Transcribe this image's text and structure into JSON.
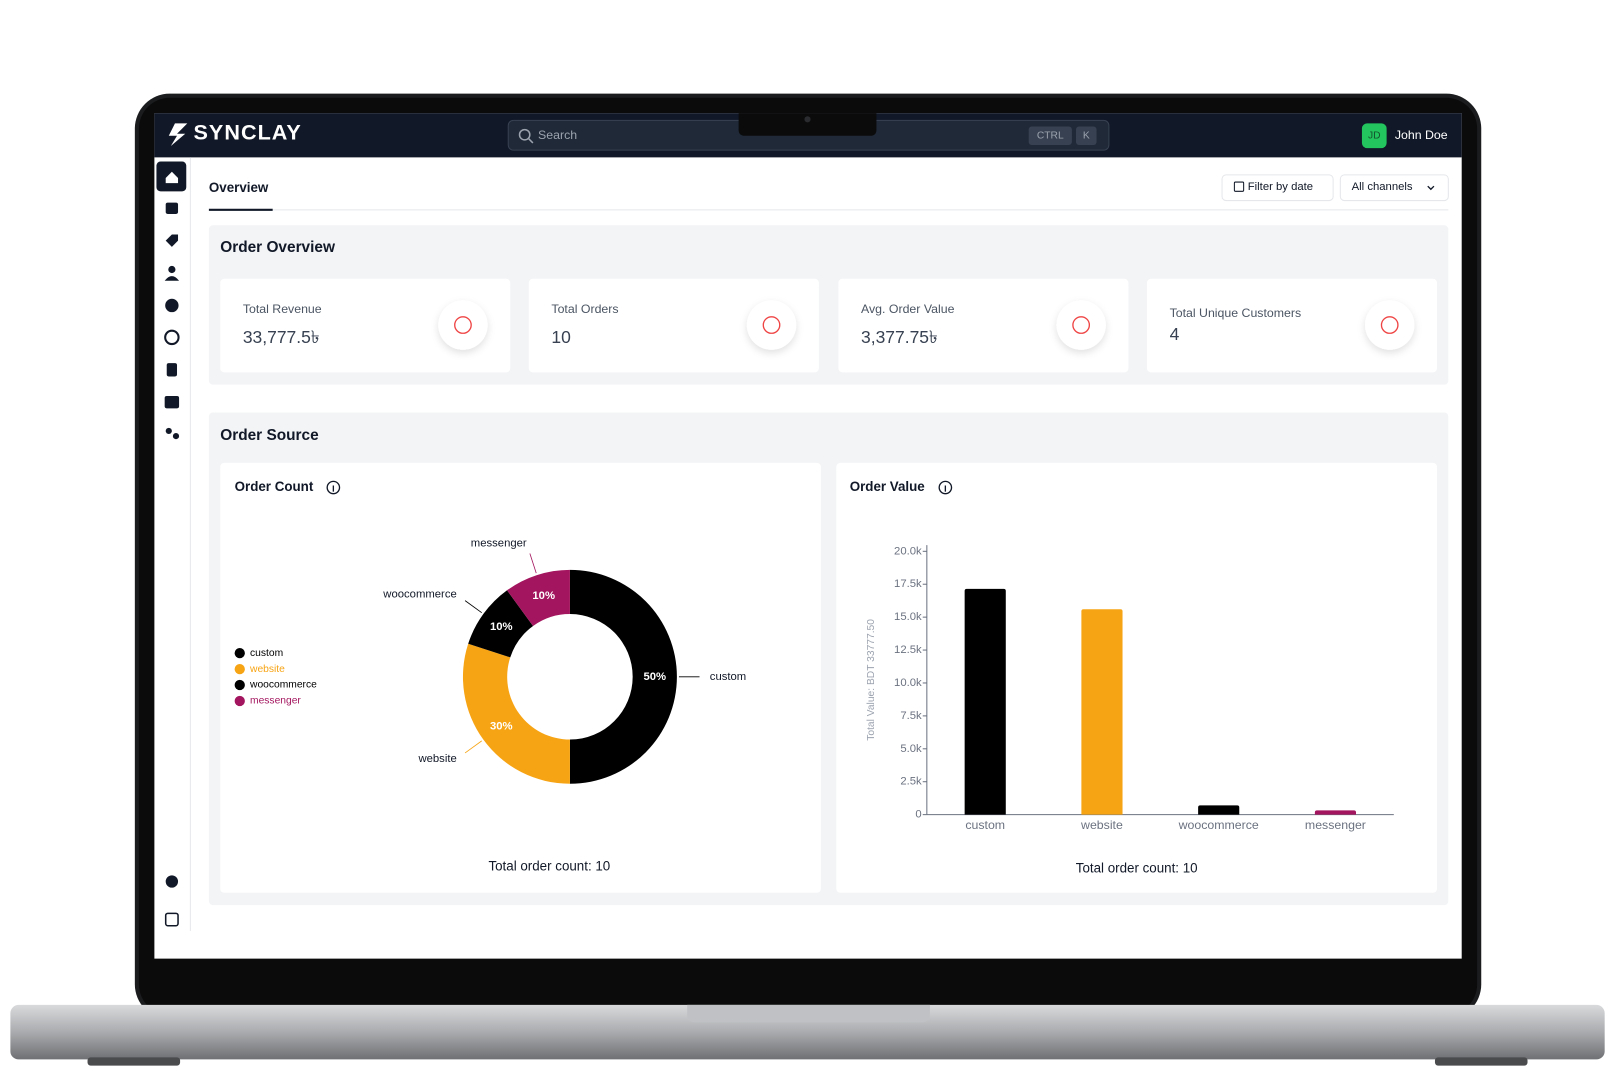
{
  "header": {
    "brand": "SYNCLAY",
    "search_placeholder": "Search",
    "shortcut": [
      "CTRL",
      "K"
    ],
    "user_initials": "JD",
    "user_name": "John Doe"
  },
  "tabs": {
    "active": "Overview",
    "filter_button": "Filter by date",
    "channel_select": "All channels"
  },
  "order_overview": {
    "title": "Order Overview",
    "cards": [
      {
        "label": "Total Revenue",
        "value": "33,777.5৳"
      },
      {
        "label": "Total Orders",
        "value": "10"
      },
      {
        "label": "Avg. Order Value",
        "value": "3,377.75৳"
      },
      {
        "label": "Total Unique Customers",
        "value": "4"
      }
    ]
  },
  "order_source": {
    "title": "Order Source",
    "charts": [
      {
        "type": "pie",
        "donut": true,
        "title": "Order Count",
        "categories": [
          "custom",
          "website",
          "woocommerce",
          "messenger"
        ],
        "values": [
          50,
          30,
          10,
          10
        ],
        "value_labels": [
          "50%",
          "30%",
          "10%",
          "10%"
        ],
        "colors": [
          "#000000",
          "#f7a414",
          "#000000",
          "#a3155e"
        ],
        "legend": "left",
        "footer": "Total order count: 10"
      },
      {
        "type": "bar",
        "title": "Order Value",
        "y_label": "Total Value: BDT 33777.50",
        "categories": [
          "custom",
          "website",
          "woocommerce",
          "messenger"
        ],
        "values": [
          17150,
          15600,
          700,
          327.5
        ],
        "colors": [
          "#000000",
          "#f7a414",
          "#000000",
          "#a3155e"
        ],
        "ylim": [
          0,
          20000
        ],
        "yticks": [
          0,
          {
            "value": 2500,
            "label": "2.5k"
          },
          {
            "value": 5000,
            "label": "5.0k"
          },
          {
            "value": 7500,
            "label": "7.5k"
          },
          {
            "value": 10000,
            "label": "10.0k"
          },
          {
            "value": 12500,
            "label": "12.5k"
          },
          {
            "value": 15000,
            "label": "15.0k"
          },
          {
            "value": 17500,
            "label": "17.5k"
          },
          {
            "value": 20000,
            "label": "20.0k"
          }
        ],
        "footer": "Total order count: 10"
      }
    ]
  }
}
